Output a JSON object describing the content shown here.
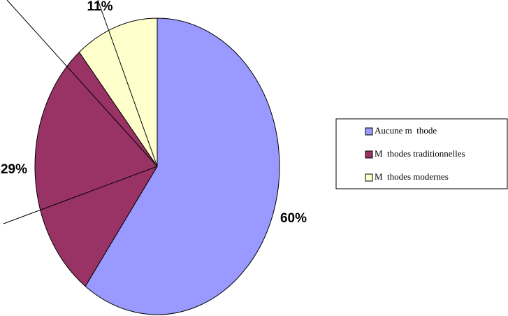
{
  "chart_data": {
    "type": "pie",
    "categories": [
      "Aucune m  thode",
      "M  thodes traditionnelles",
      "M  thodes modernes"
    ],
    "values": [
      60,
      29,
      11
    ],
    "value_labels": [
      "60%",
      "29%",
      "11%"
    ],
    "colors": [
      "#9999ff",
      "#993366",
      "#ffffcc"
    ],
    "legend": "right"
  }
}
